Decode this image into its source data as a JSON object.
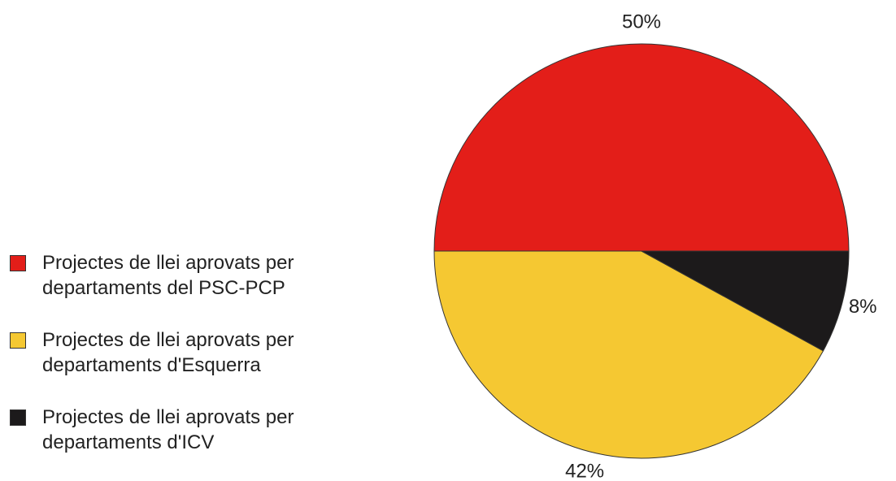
{
  "chart_data": {
    "type": "pie",
    "categories": [
      "Projectes de llei aprovats per departaments del PSC-PCP",
      "Projectes de llei aprovats per departaments d'Esquerra",
      "Projectes de llei aprovats per departaments d'ICV"
    ],
    "values": [
      50,
      42,
      8
    ],
    "value_labels": [
      "50%",
      "42%",
      "8%"
    ],
    "colors": [
      "#e31e19",
      "#f5c832",
      "#1c1a1b"
    ],
    "legend": "left"
  }
}
